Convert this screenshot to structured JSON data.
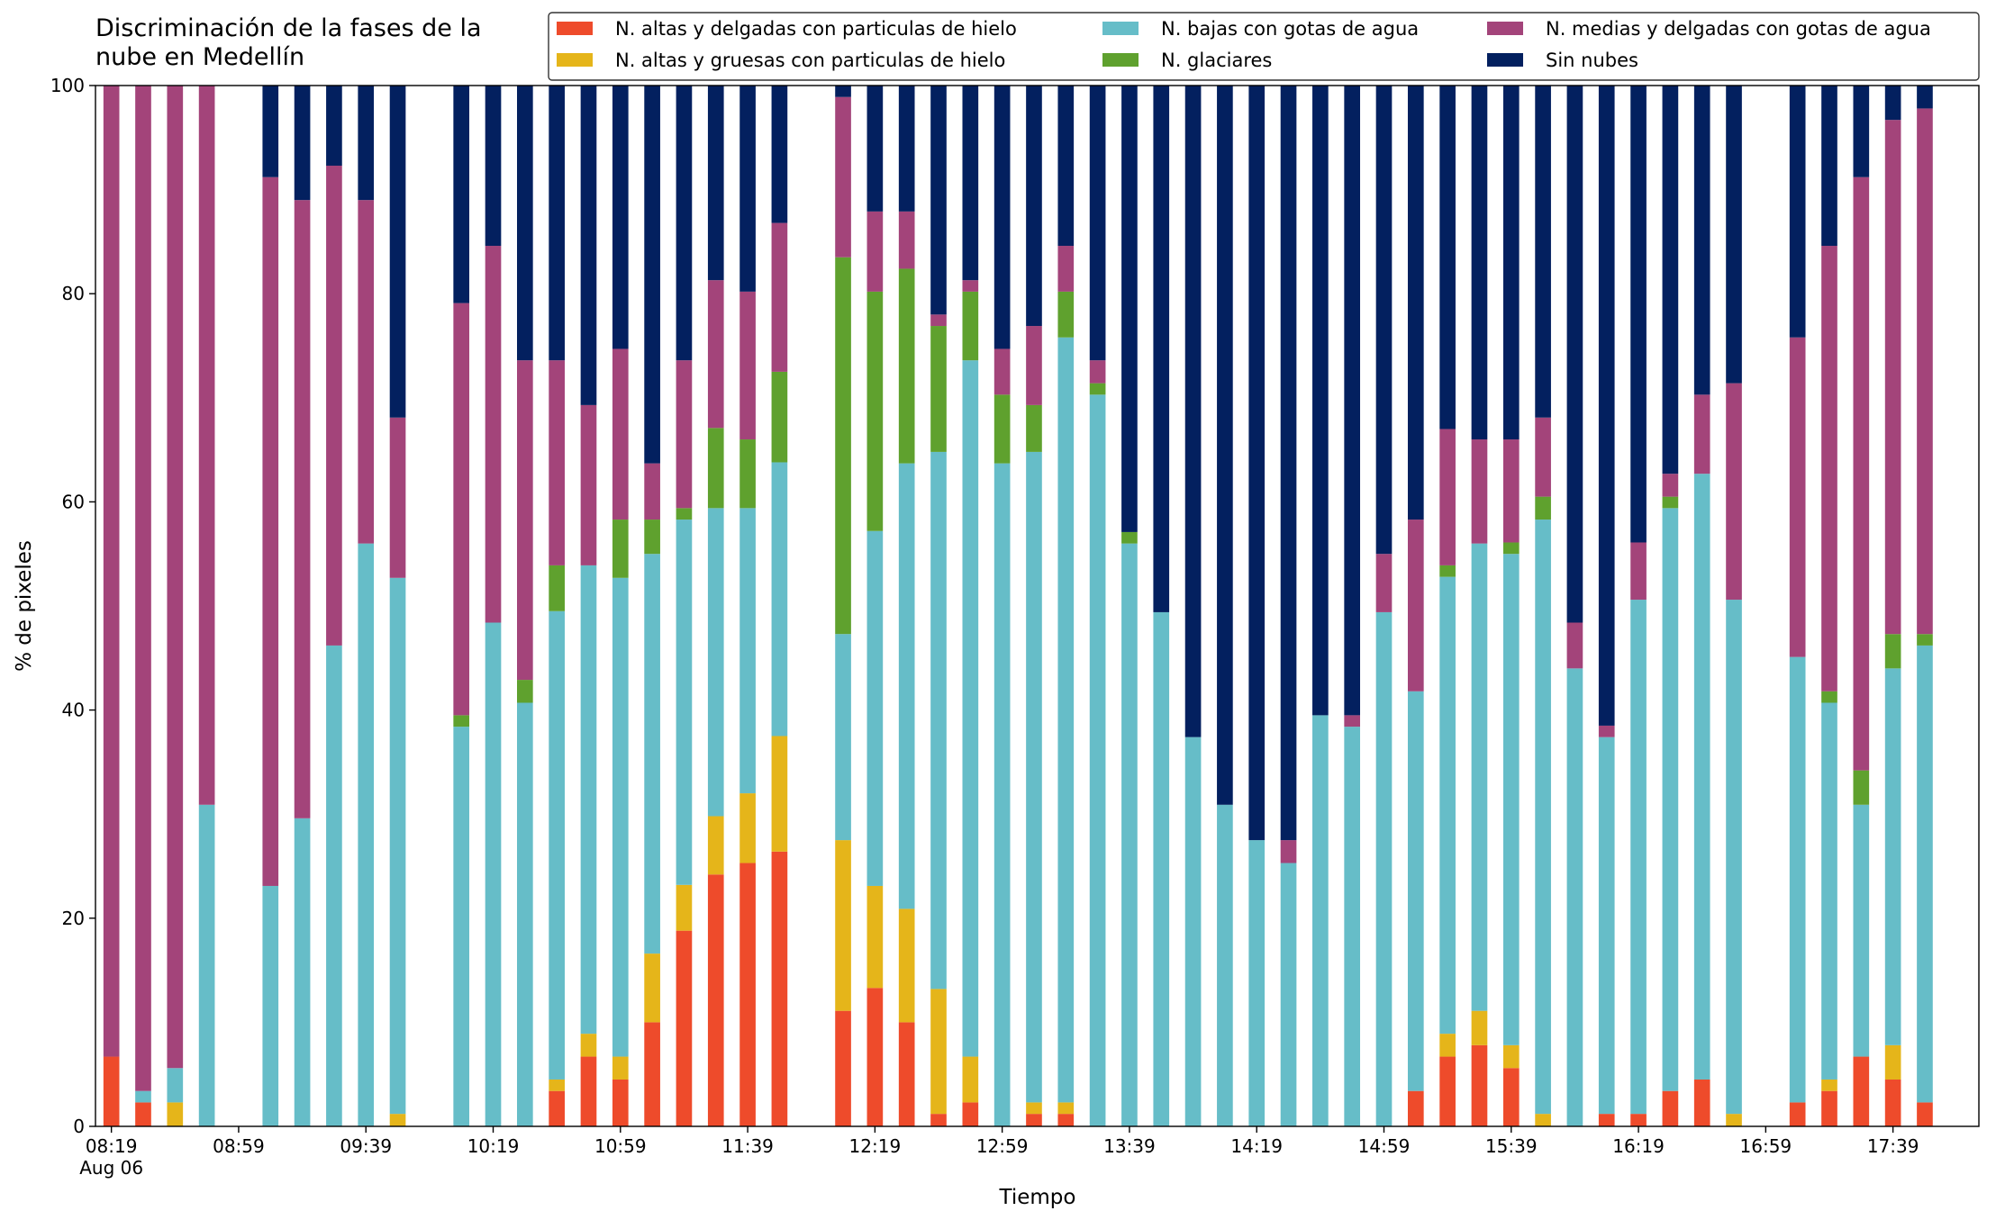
{
  "chart_data": {
    "type": "stacked_bar",
    "title": "Discriminación de la fases de la\nnube en Medellín",
    "xlabel": "Tiempo",
    "ylabel": "% de pixeles",
    "x": [
      "08:19",
      "08:29",
      "08:39",
      "08:49",
      "09:09",
      "09:19",
      "09:29",
      "09:39",
      "09:49",
      "10:09",
      "10:19",
      "10:29",
      "10:39",
      "10:49",
      "10:59",
      "11:09",
      "11:19",
      "11:29",
      "11:39",
      "11:49",
      "12:09",
      "12:19",
      "12:29",
      "12:39",
      "12:49",
      "12:59",
      "13:09",
      "13:19",
      "13:29",
      "13:39",
      "13:49",
      "13:59",
      "14:09",
      "14:19",
      "14:29",
      "14:39",
      "14:49",
      "14:59",
      "15:09",
      "15:19",
      "15:29",
      "15:39",
      "15:49",
      "15:59",
      "16:09",
      "16:19",
      "16:29",
      "16:39",
      "16:49",
      "17:09",
      "17:19",
      "17:29",
      "17:39",
      "17:49"
    ],
    "xlim": [
      "08:14",
      "18:06"
    ],
    "xticks": [
      {
        "value": "08:19",
        "label": "08:19\nAug 06"
      },
      "08:59",
      "09:39",
      "10:19",
      "10:59",
      "11:39",
      "12:19",
      "12:59",
      "13:39",
      "14:19",
      "14:59",
      "15:39",
      "16:19",
      "16:59",
      "17:39"
    ],
    "ylim": [
      0,
      100
    ],
    "yticks": [
      0,
      20,
      40,
      60,
      80,
      100
    ],
    "legend": "upper right",
    "series": [
      {
        "name": "N. altas y delgadas con particulas de hielo",
        "color": "#ee4b2b",
        "values": [
          6.7,
          2.3,
          0,
          0,
          0,
          0,
          0,
          0,
          0,
          0,
          0,
          0,
          3.4,
          6.7,
          4.5,
          10.0,
          18.8,
          24.2,
          25.3,
          26.4,
          11.1,
          13.3,
          10.0,
          1.2,
          2.3,
          0,
          1.2,
          1.2,
          0,
          0,
          0,
          0,
          0,
          0,
          0,
          0,
          0,
          0,
          3.4,
          6.7,
          7.8,
          5.6,
          0,
          0,
          1.2,
          1.2,
          3.4,
          4.5,
          0,
          2.3,
          3.4,
          6.7,
          4.5,
          2.3
        ]
      },
      {
        "name": "N. altas y gruesas con particulas de hielo",
        "color": "#e5b51a",
        "values": [
          0,
          0,
          2.3,
          0,
          0,
          0,
          0,
          0,
          1.2,
          0,
          0,
          0,
          1.1,
          2.2,
          2.2,
          6.6,
          4.4,
          5.6,
          6.7,
          11.1,
          16.4,
          9.8,
          10.9,
          12.0,
          4.4,
          0,
          1.1,
          1.1,
          0,
          0,
          0,
          0,
          0,
          0,
          0,
          0,
          0,
          0,
          0,
          2.2,
          3.3,
          2.2,
          1.2,
          0,
          0,
          0,
          0,
          0,
          1.2,
          0,
          1.1,
          0,
          3.3,
          0
        ]
      },
      {
        "name": "N. bajas con gotas de agua",
        "color": "#66bdc8",
        "values": [
          0,
          1.1,
          3.3,
          30.9,
          23.1,
          29.6,
          46.2,
          56.0,
          51.5,
          38.4,
          48.4,
          40.7,
          45.0,
          45.0,
          46.0,
          38.4,
          35.1,
          29.6,
          27.4,
          26.3,
          19.8,
          34.1,
          42.8,
          51.6,
          66.9,
          63.7,
          62.5,
          73.5,
          70.3,
          56.0,
          49.4,
          37.4,
          30.9,
          27.5,
          25.3,
          39.5,
          38.4,
          49.4,
          38.4,
          43.9,
          44.9,
          47.2,
          57.1,
          44.0,
          36.2,
          49.4,
          56.0,
          58.2,
          49.4,
          42.8,
          36.2,
          24.2,
          36.2,
          43.9
        ]
      },
      {
        "name": "N. glaciares",
        "color": "#5fa12e",
        "values": [
          0,
          0,
          0,
          0,
          0,
          0,
          0,
          0,
          0,
          1.1,
          0,
          2.2,
          4.4,
          0,
          5.6,
          3.3,
          1.1,
          7.7,
          6.6,
          8.7,
          36.2,
          23.0,
          18.7,
          12.1,
          6.6,
          6.6,
          4.5,
          4.4,
          1.1,
          1.1,
          0,
          0,
          0,
          0,
          0,
          0,
          0,
          0,
          0,
          1.1,
          0,
          1.1,
          2.2,
          0,
          0,
          0,
          1.1,
          0,
          0,
          0,
          1.1,
          3.3,
          3.3,
          1.1
        ]
      },
      {
        "name": "N. medias y delgadas con gotas de agua",
        "color": "#a3447a",
        "values": [
          93.3,
          96.6,
          94.4,
          69.1,
          68.1,
          59.4,
          46.1,
          33.0,
          15.4,
          39.6,
          36.2,
          30.7,
          19.7,
          15.4,
          16.4,
          5.4,
          14.2,
          14.2,
          14.2,
          14.3,
          15.4,
          7.7,
          5.5,
          1.1,
          1.1,
          4.4,
          7.6,
          4.4,
          2.2,
          0,
          0,
          0,
          0,
          0,
          2.2,
          0,
          1.1,
          5.6,
          16.5,
          13.1,
          10.0,
          9.9,
          7.6,
          4.4,
          1.1,
          5.5,
          2.2,
          7.6,
          20.8,
          30.7,
          42.8,
          57.0,
          49.4,
          50.5
        ]
      },
      {
        "name": "Sin nubes",
        "color": "#03205f",
        "values": [
          0,
          0,
          0,
          0,
          8.8,
          11.0,
          7.7,
          11.0,
          31.9,
          20.9,
          15.4,
          26.4,
          26.4,
          30.7,
          25.3,
          36.3,
          26.4,
          18.7,
          19.8,
          13.2,
          1.1,
          12.1,
          12.1,
          22.0,
          18.7,
          25.3,
          23.1,
          15.4,
          26.4,
          42.9,
          50.6,
          62.6,
          69.1,
          72.5,
          72.5,
          60.5,
          60.5,
          45.0,
          41.7,
          33.0,
          34.0,
          34.0,
          31.9,
          51.6,
          61.5,
          43.9,
          37.3,
          29.7,
          28.6,
          24.2,
          15.4,
          8.8,
          3.3,
          2.2
        ]
      }
    ]
  }
}
